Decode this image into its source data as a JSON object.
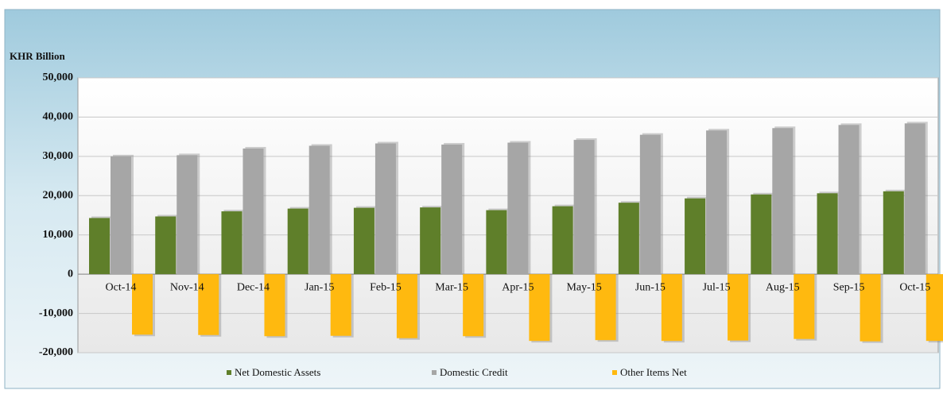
{
  "chart_data": {
    "type": "bar",
    "title": "KHR Billion",
    "categories": [
      "Oct-14",
      "Nov-14",
      "Dec-14",
      "Jan-15",
      "Feb-15",
      "Mar-15",
      "Apr-15",
      "May-15",
      "Jun-15",
      "Jul-15",
      "Aug-15",
      "Sep-15",
      "Oct-15"
    ],
    "series": [
      {
        "name": "Net Domestic Assets",
        "color": "#5f7f2a",
        "values": [
          14300,
          14700,
          16000,
          16700,
          16900,
          17000,
          16300,
          17300,
          18200,
          19300,
          20300,
          20600,
          21100
        ]
      },
      {
        "name": "Domestic Credit",
        "color": "#a6a6a6",
        "values": [
          30000,
          30300,
          32000,
          32700,
          33300,
          33000,
          33500,
          34200,
          35500,
          36600,
          37200,
          38000,
          38400
        ]
      },
      {
        "name": "Other Items Net",
        "color": "#ffb90f",
        "values": [
          -15400,
          -15500,
          -15800,
          -15700,
          -16300,
          -15800,
          -17000,
          -16800,
          -17000,
          -16900,
          -16500,
          -17100,
          -17000
        ]
      }
    ],
    "ylim": [
      -20000,
      50000
    ],
    "yticks": [
      {
        "value": -20000,
        "label": "-20,000"
      },
      {
        "value": -10000,
        "label": "-10,000"
      },
      0,
      {
        "value": 10000,
        "label": "10,000"
      },
      {
        "value": 20000,
        "label": "20,000"
      },
      {
        "value": 30000,
        "label": "30,000"
      },
      {
        "value": 40000,
        "label": "40,000"
      },
      {
        "value": 50000,
        "label": "50,000"
      }
    ],
    "grid": true
  }
}
